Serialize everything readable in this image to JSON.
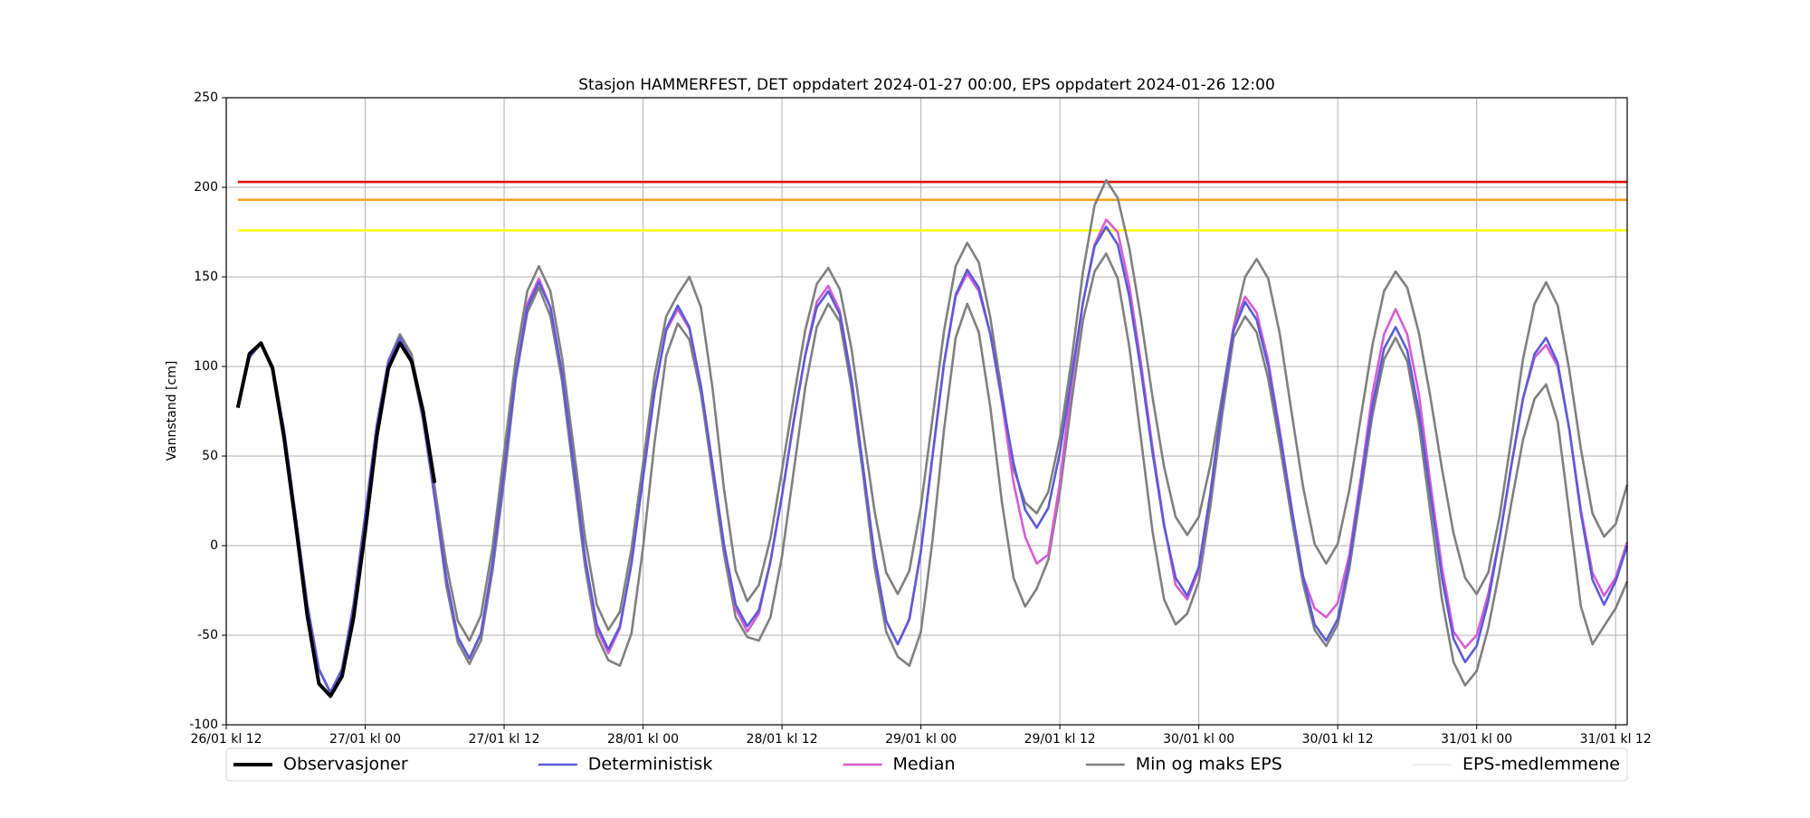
{
  "chart_data": {
    "type": "line",
    "title": "Stasjon HAMMERFEST, DET oppdatert 2024-01-27 00:00, EPS oppdatert 2024-01-26 12:00",
    "ylabel": "Vannstand [cm]",
    "xlim": [
      "26/01 12:00",
      "31/01 13:00"
    ],
    "ylim": [
      -100,
      250
    ],
    "yticks": [
      -100,
      -50,
      0,
      50,
      100,
      150,
      200,
      250
    ],
    "xticks": [
      {
        "value": "26/01 12:00",
        "label": "26/01 kl 12"
      },
      {
        "value": "27/01 00:00",
        "label": "27/01 kl 00"
      },
      {
        "value": "27/01 12:00",
        "label": "27/01 kl 12"
      },
      {
        "value": "28/01 00:00",
        "label": "28/01 kl 00"
      },
      {
        "value": "28/01 12:00",
        "label": "28/01 kl 12"
      },
      {
        "value": "29/01 00:00",
        "label": "29/01 kl 00"
      },
      {
        "value": "29/01 12:00",
        "label": "29/01 kl 12"
      },
      {
        "value": "30/01 00:00",
        "label": "30/01 kl 00"
      },
      {
        "value": "30/01 12:00",
        "label": "30/01 kl 12"
      },
      {
        "value": "31/01 00:00",
        "label": "31/01 kl 00"
      },
      {
        "value": "31/01 12:00",
        "label": "31/01 kl 12"
      }
    ],
    "grid": true,
    "legend": "bottom",
    "hlines": [
      {
        "value": 203,
        "color": "#e01010",
        "start": "26/01 13:00"
      },
      {
        "value": 193,
        "color": "#f5a31a",
        "start": "26/01 13:00"
      },
      {
        "value": 176,
        "color": "#ffff1a",
        "start": "26/01 13:00"
      }
    ],
    "x": [
      "26/01 13:00",
      "26/01 14:00",
      "26/01 15:00",
      "26/01 16:00",
      "26/01 17:00",
      "26/01 18:00",
      "26/01 19:00",
      "26/01 20:00",
      "26/01 21:00",
      "26/01 22:00",
      "26/01 23:00",
      "27/01 00:00",
      "27/01 01:00",
      "27/01 02:00",
      "27/01 03:00",
      "27/01 04:00",
      "27/01 05:00",
      "27/01 06:00",
      "27/01 07:00",
      "27/01 08:00",
      "27/01 09:00",
      "27/01 10:00",
      "27/01 11:00",
      "27/01 12:00",
      "27/01 13:00",
      "27/01 14:00",
      "27/01 15:00",
      "27/01 16:00",
      "27/01 17:00",
      "27/01 18:00",
      "27/01 19:00",
      "27/01 20:00",
      "27/01 21:00",
      "27/01 22:00",
      "27/01 23:00",
      "28/01 00:00",
      "28/01 01:00",
      "28/01 02:00",
      "28/01 03:00",
      "28/01 04:00",
      "28/01 05:00",
      "28/01 06:00",
      "28/01 07:00",
      "28/01 08:00",
      "28/01 09:00",
      "28/01 10:00",
      "28/01 11:00",
      "28/01 12:00",
      "28/01 13:00",
      "28/01 14:00",
      "28/01 15:00",
      "28/01 16:00",
      "28/01 17:00",
      "28/01 18:00",
      "28/01 19:00",
      "28/01 20:00",
      "28/01 21:00",
      "28/01 22:00",
      "28/01 23:00",
      "29/01 00:00",
      "29/01 01:00",
      "29/01 02:00",
      "29/01 03:00",
      "29/01 04:00",
      "29/01 05:00",
      "29/01 06:00",
      "29/01 07:00",
      "29/01 08:00",
      "29/01 09:00",
      "29/01 10:00",
      "29/01 11:00",
      "29/01 12:00",
      "29/01 13:00",
      "29/01 14:00",
      "29/01 15:00",
      "29/01 16:00",
      "29/01 17:00",
      "29/01 18:00",
      "29/01 19:00",
      "29/01 20:00",
      "29/01 21:00",
      "29/01 22:00",
      "29/01 23:00",
      "30/01 00:00",
      "30/01 01:00",
      "30/01 02:00",
      "30/01 03:00",
      "30/01 04:00",
      "30/01 05:00",
      "30/01 06:00",
      "30/01 07:00",
      "30/01 08:00",
      "30/01 09:00",
      "30/01 10:00",
      "30/01 11:00",
      "30/01 12:00",
      "30/01 13:00",
      "30/01 14:00",
      "30/01 15:00",
      "30/01 16:00",
      "30/01 17:00",
      "30/01 18:00",
      "30/01 19:00",
      "30/01 20:00",
      "30/01 21:00",
      "30/01 22:00",
      "30/01 23:00",
      "31/01 00:00",
      "31/01 01:00",
      "31/01 02:00",
      "31/01 03:00",
      "31/01 04:00",
      "31/01 05:00",
      "31/01 06:00",
      "31/01 07:00",
      "31/01 08:00",
      "31/01 09:00",
      "31/01 10:00",
      "31/01 11:00",
      "31/01 12:00",
      "31/01 13:00"
    ],
    "series": [
      {
        "name": "Observasjoner",
        "color": "#000000",
        "linewidth": 4,
        "values": [
          77,
          107,
          113,
          99,
          60,
          12,
          -39,
          -77,
          -84,
          -73,
          -40,
          8,
          61,
          99,
          113,
          103,
          75,
          35,
          null,
          null,
          null,
          null,
          null,
          null,
          null,
          null,
          null,
          null,
          null,
          null,
          null,
          null,
          null,
          null,
          null,
          null,
          null,
          null,
          null,
          null,
          null,
          null,
          null,
          null,
          null,
          null,
          null,
          null,
          null,
          null,
          null,
          null,
          null,
          null,
          null,
          null,
          null,
          null,
          null,
          null,
          null,
          null,
          null,
          null,
          null,
          null,
          null,
          null,
          null,
          null,
          null,
          null,
          null,
          null,
          null,
          null,
          null,
          null,
          null,
          null,
          null,
          null,
          null,
          null,
          null,
          null,
          null,
          null,
          null,
          null,
          null,
          null,
          null,
          null,
          null,
          null,
          null,
          null,
          null,
          null,
          null,
          null,
          null,
          null,
          null,
          null,
          null,
          null,
          null,
          null,
          null,
          null,
          null,
          null,
          null,
          null,
          null,
          null,
          null,
          null,
          null
        ]
      },
      {
        "name": "Deterministisk",
        "color": "#5b5bd6",
        "linewidth": 2.6,
        "values": [
          77,
          105,
          113,
          100,
          64,
          16,
          -33,
          -69,
          -82,
          -69,
          -33,
          17,
          67,
          103,
          116,
          104,
          71,
          27,
          -18,
          -51,
          -63,
          -49,
          -10,
          42,
          95,
          133,
          147,
          133,
          96,
          45,
          -7,
          -44,
          -58,
          -45,
          -10,
          38,
          86,
          121,
          134,
          122,
          89,
          45,
          0,
          -33,
          -45,
          -36,
          -9,
          28,
          69,
          106,
          133,
          142,
          129,
          93,
          44,
          -6,
          -42,
          -55,
          -41,
          -3,
          50,
          102,
          140,
          154,
          144,
          118,
          82,
          46,
          20,
          10,
          21,
          52,
          94,
          136,
          167,
          178,
          168,
          139,
          98,
          52,
          11,
          -18,
          -28,
          -12,
          29,
          79,
          120,
          136,
          126,
          100,
          62,
          21,
          -17,
          -44,
          -53,
          -41,
          -9,
          35,
          78,
          110,
          122,
          109,
          75,
          29,
          -18,
          -52,
          -65,
          -56,
          -31,
          5,
          45,
          82,
          107,
          116,
          102,
          65,
          18,
          -19,
          -33,
          -20,
          0
        ]
      },
      {
        "name": "Median",
        "color": "#d65bd6",
        "linewidth": 2.6,
        "values": [
          77,
          105,
          113,
          100,
          64,
          16,
          -33,
          -69,
          -82,
          -69,
          -33,
          17,
          67,
          103,
          116,
          104,
          71,
          27,
          -18,
          -51,
          -63,
          -49,
          -10,
          42,
          95,
          135,
          149,
          133,
          96,
          45,
          -7,
          -46,
          -60,
          -46,
          -10,
          38,
          86,
          120,
          132,
          121,
          89,
          45,
          0,
          -35,
          -48,
          -38,
          -9,
          28,
          69,
          106,
          136,
          145,
          131,
          93,
          44,
          -6,
          -42,
          -55,
          -41,
          -3,
          50,
          102,
          139,
          152,
          142,
          118,
          80,
          35,
          5,
          -10,
          -5,
          35,
          90,
          136,
          168,
          182,
          175,
          145,
          102,
          55,
          12,
          -22,
          -30,
          -14,
          29,
          79,
          122,
          139,
          130,
          103,
          64,
          22,
          -17,
          -35,
          -40,
          -32,
          -5,
          38,
          85,
          118,
          132,
          118,
          85,
          35,
          -12,
          -48,
          -57,
          -50,
          -27,
          5,
          45,
          82,
          105,
          112,
          100,
          65,
          20,
          -15,
          -28,
          -18,
          2
        ]
      },
      {
        "name": "Min og maks EPS",
        "color": "#808080",
        "linewidth": 2.6,
        "values": [
          77,
          105,
          113,
          100,
          64,
          16,
          -33,
          -69,
          -82,
          -69,
          -33,
          17,
          67,
          103,
          113,
          102,
          70,
          27,
          -22,
          -54,
          -66,
          -53,
          -14,
          36,
          93,
          130,
          144,
          128,
          92,
          40,
          -12,
          -50,
          -64,
          -67,
          -49,
          -1,
          58,
          106,
          124,
          115,
          85,
          40,
          -5,
          -40,
          -51,
          -53,
          -40,
          -6,
          41,
          88,
          122,
          135,
          125,
          88,
          40,
          -12,
          -48,
          -62,
          -67,
          -48,
          3,
          65,
          116,
          135,
          119,
          77,
          24,
          -18,
          -34,
          -24,
          -8,
          30,
          80,
          126,
          153,
          163,
          149,
          111,
          60,
          8,
          -30,
          -44,
          -38,
          -20,
          22,
          72,
          116,
          128,
          119,
          93,
          56,
          16,
          -21,
          -47,
          -56,
          -44,
          -13,
          30,
          73,
          104,
          116,
          103,
          68,
          19,
          -30,
          -65,
          -78,
          -70,
          -46,
          -13,
          24,
          59,
          82,
          90,
          69,
          18,
          -34,
          -55,
          -45,
          -35,
          -20
        ]
      },
      {
        "color": "#808080",
        "linewidth": 2.6,
        "values": [
          77,
          105,
          113,
          100,
          64,
          16,
          -33,
          -69,
          -82,
          -69,
          -33,
          17,
          67,
          103,
          118,
          107,
          75,
          33,
          -10,
          -42,
          -53,
          -39,
          -1,
          52,
          104,
          142,
          156,
          142,
          105,
          55,
          4,
          -33,
          -47,
          -37,
          -2,
          46,
          95,
          128,
          140,
          150,
          133,
          88,
          31,
          -14,
          -31,
          -22,
          4,
          42,
          82,
          120,
          146,
          155,
          143,
          110,
          64,
          19,
          -15,
          -27,
          -14,
          22,
          71,
          120,
          156,
          169,
          158,
          127,
          85,
          43,
          24,
          18,
          30,
          60,
          103,
          153,
          190,
          204,
          194,
          166,
          127,
          83,
          44,
          16,
          6,
          16,
          45,
          83,
          122,
          150,
          160,
          149,
          118,
          75,
          33,
          1,
          -10,
          1,
          31,
          72,
          112,
          142,
          153,
          144,
          119,
          83,
          43,
          7,
          -18,
          -27,
          -15,
          17,
          60,
          104,
          135,
          147,
          134,
          98,
          54,
          18,
          5,
          12,
          34
        ]
      },
      {
        "name": "EPS-medlemmene",
        "color": "#dcdcdc",
        "linewidth": 1
      }
    ]
  }
}
